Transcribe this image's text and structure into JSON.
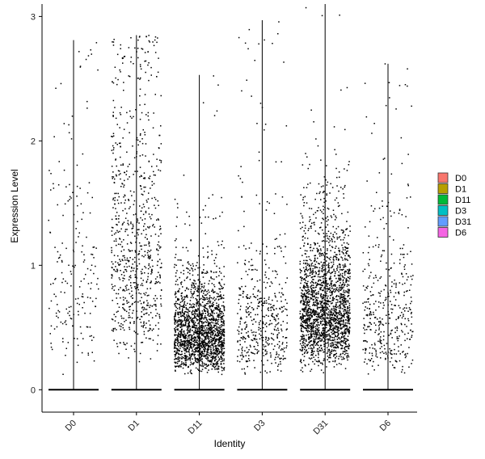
{
  "chart_data": {
    "type": "scatter",
    "subtype": "violin-jitter",
    "xlabel": "Identity",
    "ylabel": "Expression Level",
    "categories": [
      "D0",
      "D1",
      "D11",
      "D3",
      "D31",
      "D6"
    ],
    "ylim": [
      -0.18,
      3.1
    ],
    "yticks": [
      0,
      1,
      2,
      3
    ],
    "grid": false,
    "legend": {
      "placement": "right",
      "entries": [
        {
          "name": "D0",
          "color": "#F8766D"
        },
        {
          "name": "D1",
          "color": "#B79F00"
        },
        {
          "name": "D11",
          "color": "#00BA38"
        },
        {
          "name": "D3",
          "color": "#00BFC4"
        },
        {
          "name": "D31",
          "color": "#619CFF"
        },
        {
          "name": "D6",
          "color": "#F564E3"
        }
      ]
    },
    "series": [
      {
        "name": "D0",
        "max": 2.81,
        "count": 420,
        "zero_fraction": 0.55,
        "mean_log": -0.1,
        "sd_log": 0.65
      },
      {
        "name": "D1",
        "max": 2.85,
        "count": 1200,
        "zero_fraction": 0.35,
        "mean_log": 0.15,
        "sd_log": 0.55
      },
      {
        "name": "D11",
        "max": 2.53,
        "count": 2600,
        "zero_fraction": 0.3,
        "mean_log": -0.75,
        "sd_log": 0.45
      },
      {
        "name": "D3",
        "max": 2.97,
        "count": 850,
        "zero_fraction": 0.45,
        "mean_log": -0.55,
        "sd_log": 0.6
      },
      {
        "name": "D31",
        "max": 3.1,
        "count": 2900,
        "zero_fraction": 0.3,
        "mean_log": -0.45,
        "sd_log": 0.45
      },
      {
        "name": "D6",
        "max": 2.62,
        "count": 750,
        "zero_fraction": 0.45,
        "mean_log": -0.5,
        "sd_log": 0.6
      }
    ]
  }
}
